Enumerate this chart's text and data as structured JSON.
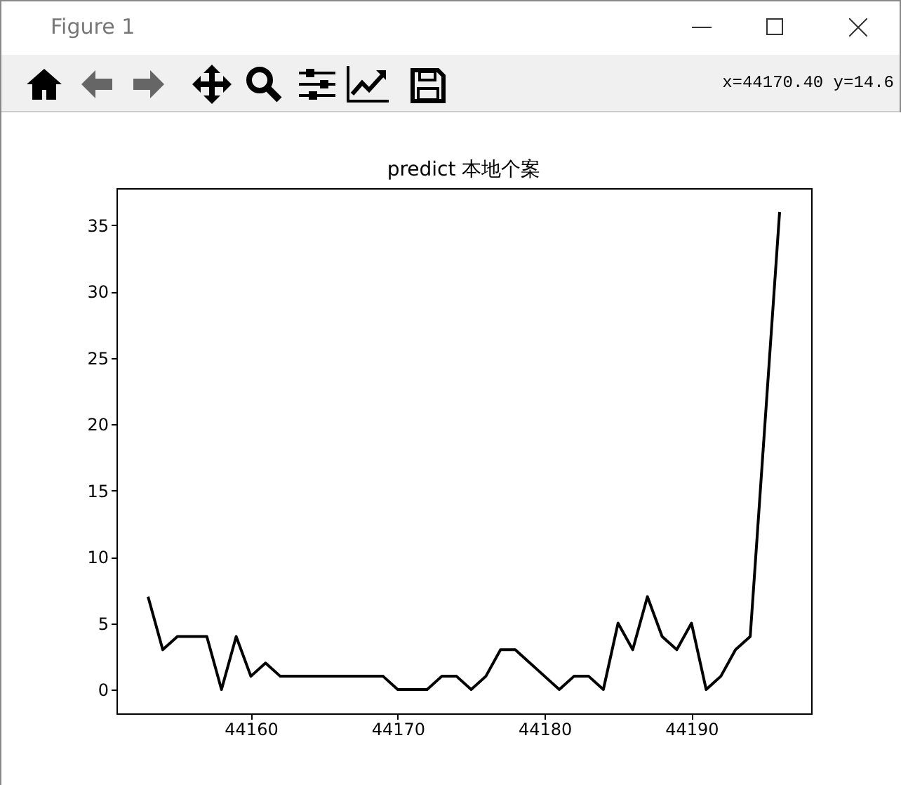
{
  "chart_data": {
    "type": "line",
    "title": "predict 本地个案",
    "annotations": [
      "Figure 1",
      "x=44170.40 y=14.6"
    ],
    "x": [
      44153,
      44154,
      44155,
      44156,
      44157,
      44158,
      44159,
      44160,
      44161,
      44162,
      44163,
      44164,
      44165,
      44166,
      44167,
      44168,
      44169,
      44170,
      44171,
      44172,
      44173,
      44174,
      44175,
      44176,
      44177,
      44178,
      44179,
      44180,
      44181,
      44182,
      44183,
      44184,
      44185,
      44186,
      44187,
      44188,
      44189,
      44190,
      44191,
      44192,
      44193,
      44194,
      44196
    ],
    "series": [
      {
        "color": "#000000",
        "values": [
          7,
          3,
          4,
          4,
          4,
          0,
          4,
          1,
          2,
          1,
          1,
          1,
          1,
          1,
          1,
          1,
          1,
          0,
          0,
          0,
          1,
          1,
          0,
          1,
          3,
          3,
          2,
          1,
          0,
          1,
          1,
          0,
          5,
          3,
          7,
          4,
          3,
          5,
          0,
          1,
          3,
          4,
          36
        ]
      }
    ],
    "xlim": [
      44150.85,
      44198.15
    ],
    "ylim": [
      -1.8,
      37.8
    ],
    "xticks": [
      44160,
      44170,
      44180,
      44190
    ],
    "yticks": [
      0,
      5,
      10,
      15,
      20,
      25,
      30,
      35
    ]
  }
}
